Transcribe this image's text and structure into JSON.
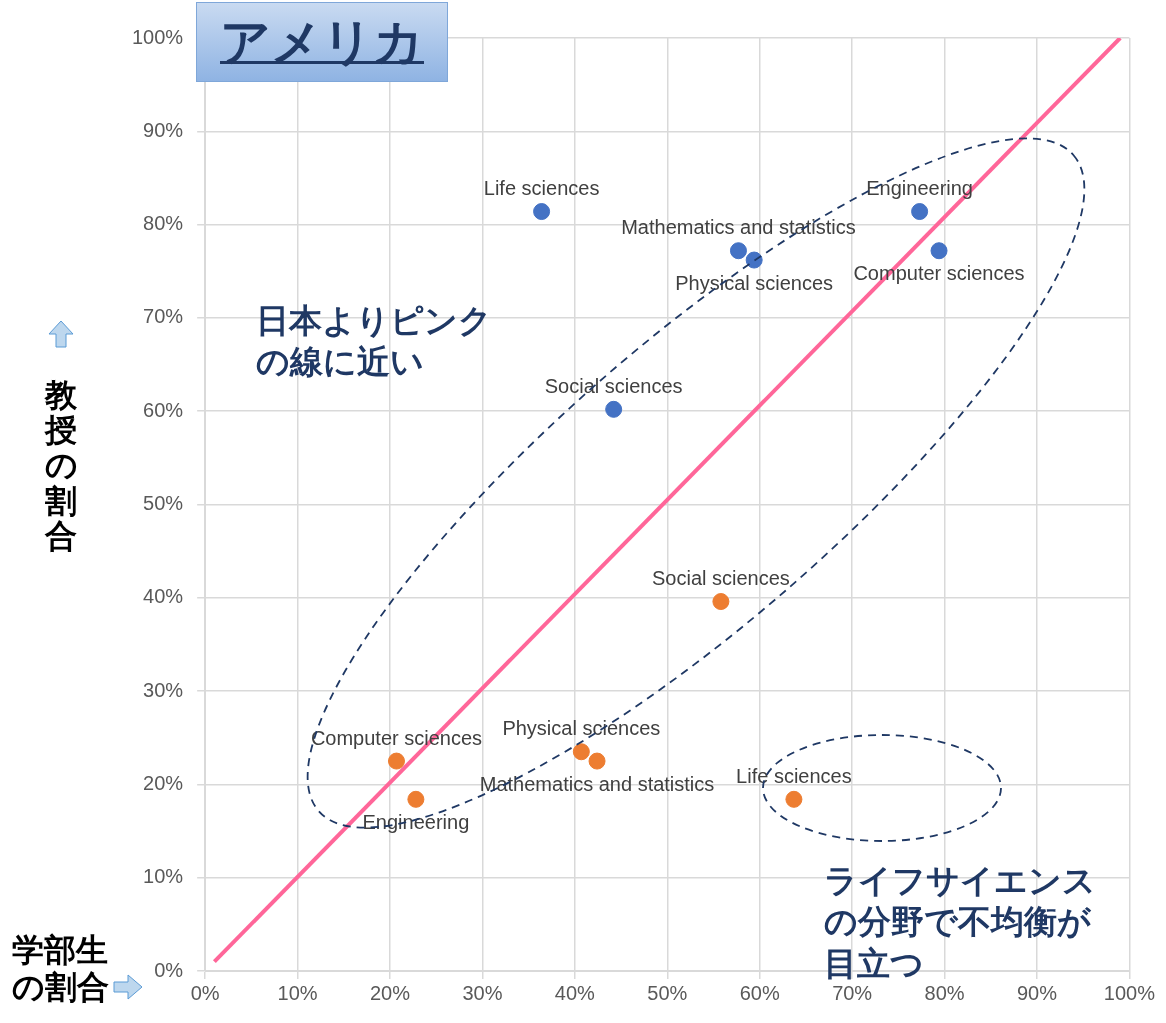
{
  "chart_data": {
    "type": "scatter",
    "title": "アメリカ",
    "xlabel": "学部生の割合",
    "ylabel": "教授の割合",
    "xlim": [
      0,
      100
    ],
    "ylim": [
      0,
      100
    ],
    "xticks": [
      {
        "value": 0,
        "label": "0%"
      },
      {
        "value": 10,
        "label": "10%"
      },
      {
        "value": 20,
        "label": "20%"
      },
      {
        "value": 30,
        "label": "30%"
      },
      {
        "value": 40,
        "label": "40%"
      },
      {
        "value": 50,
        "label": "50%"
      },
      {
        "value": 60,
        "label": "60%"
      },
      {
        "value": 70,
        "label": "70%"
      },
      {
        "value": 80,
        "label": "80%"
      },
      {
        "value": 90,
        "label": "90%"
      },
      {
        "value": 100,
        "label": "100%"
      }
    ],
    "yticks": [
      {
        "value": 0,
        "label": "0%"
      },
      {
        "value": 10,
        "label": "10%"
      },
      {
        "value": 20,
        "label": "20%"
      },
      {
        "value": 30,
        "label": "30%"
      },
      {
        "value": 40,
        "label": "40%"
      },
      {
        "value": 50,
        "label": "50%"
      },
      {
        "value": 60,
        "label": "60%"
      },
      {
        "value": 70,
        "label": "70%"
      },
      {
        "value": 80,
        "label": "80%"
      },
      {
        "value": 90,
        "label": "90%"
      },
      {
        "value": 100,
        "label": "100%"
      }
    ],
    "grid": true,
    "legend": false,
    "series": [
      {
        "color": "#4472c4",
        "marker": "circle",
        "x": [
          36.4,
          57.7,
          59.4,
          77.3,
          79.4,
          44.2
        ],
        "values": [
          81.4,
          77.2,
          76.2,
          81.4,
          77.2,
          60.2
        ],
        "value_labels": [
          "Life sciences",
          "Mathematics and statistics",
          "Physical sciences",
          "Engineering",
          "Computer sciences",
          "Social sciences"
        ]
      },
      {
        "color": "#ed7d31",
        "marker": "circle",
        "x": [
          20.7,
          22.8,
          40.7,
          42.4,
          55.8,
          63.7
        ],
        "values": [
          22.5,
          18.4,
          23.5,
          22.5,
          39.6,
          18.4
        ],
        "value_labels": [
          "Computer sciences",
          "Engineering",
          "Physical sciences",
          "Mathematics and statistics",
          "Social sciences",
          "Life sciences"
        ]
      },
      {
        "type": "line",
        "color": "#ff6699",
        "line_style": "solid",
        "x": [
          1,
          99
        ],
        "values": [
          1,
          100
        ]
      }
    ],
    "annotations": [
      "日本よりピンクの線に近い",
      "ライフサイエンスの分野で不均衡が目立つ"
    ]
  }
}
